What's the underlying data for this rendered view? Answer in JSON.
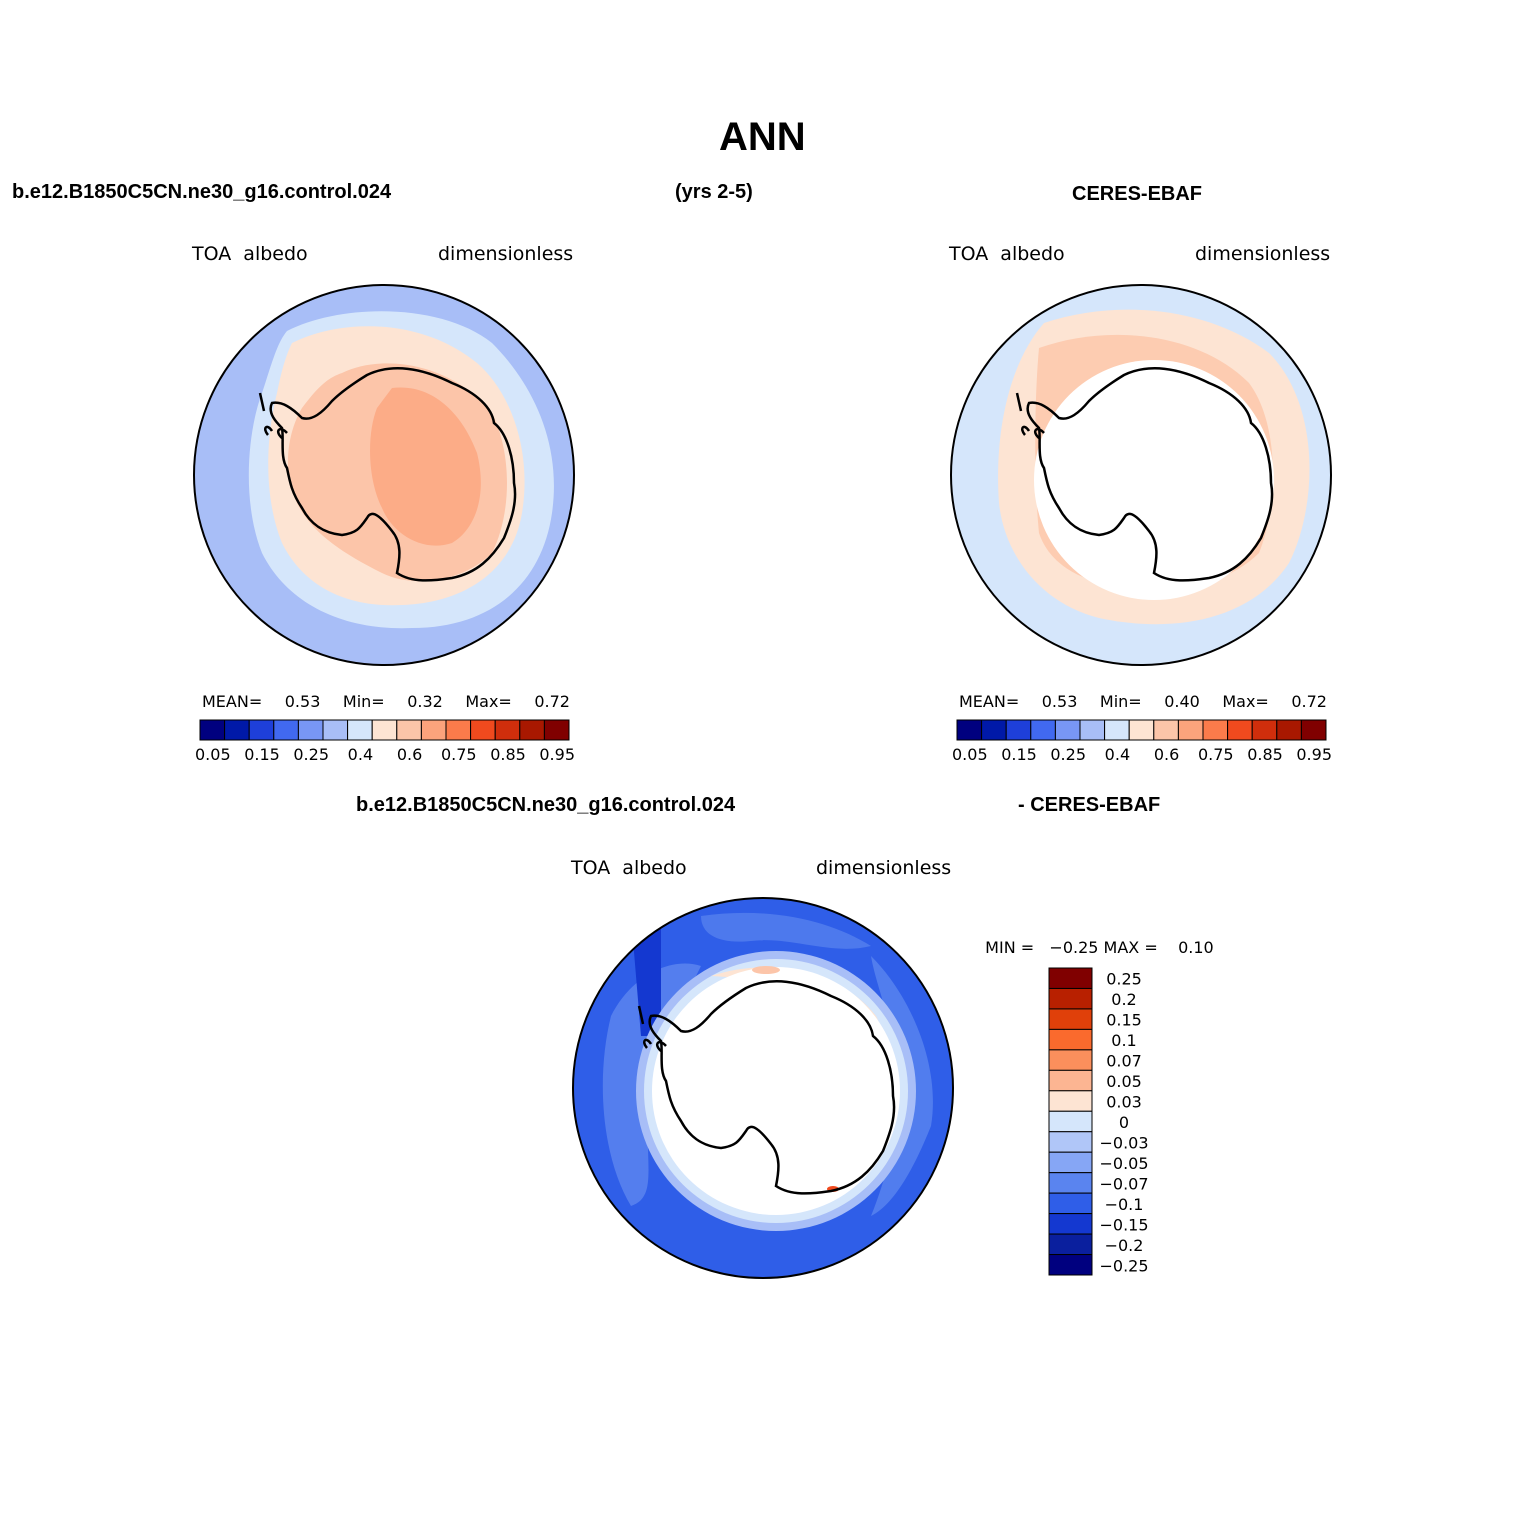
{
  "title": "ANN",
  "top_left_header": "b.e12.B1850C5CN.ne30_g16.control.024",
  "top_middle_header": "(yrs 2-5)",
  "top_right_header": "CERES-EBAF",
  "panels": {
    "model": {
      "variable": "TOA  albedo",
      "units": "dimensionless",
      "stats": {
        "mean_label": "MEAN=",
        "mean": "0.53",
        "min_label": "Min=",
        "min": "0.32",
        "max_label": "Max=",
        "max": "0.72"
      }
    },
    "obs": {
      "variable": "TOA  albedo",
      "units": "dimensionless",
      "stats": {
        "mean_label": "MEAN=",
        "mean": "0.53",
        "min_label": "Min=",
        "min": "0.40",
        "max_label": "Max=",
        "max": "0.72"
      }
    },
    "diff": {
      "header_left": "b.e12.B1850C5CN.ne30_g16.control.024",
      "header_right": "- CERES-EBAF",
      "variable": "TOA  albedo",
      "units": "dimensionless",
      "stats": {
        "min_label": "MIN =",
        "min": "−0.25",
        "max_label": "MAX =",
        "max": "0.10"
      }
    }
  },
  "abs_colorbar": {
    "colors": [
      "#00007f",
      "#0019a8",
      "#1e3fd9",
      "#4169f0",
      "#7896f5",
      "#a8bef7",
      "#d5e6fb",
      "#fde4d3",
      "#fcc5a9",
      "#fca37c",
      "#fb7b4b",
      "#f04a1e",
      "#d02e0c",
      "#a81800",
      "#800000"
    ],
    "tick_labels": [
      "0.05",
      "0.15",
      "0.25",
      "0.4",
      "0.6",
      "0.75",
      "0.85",
      "0.95"
    ]
  },
  "diff_colorbar": {
    "colors": [
      "#800000",
      "#b82000",
      "#e0400a",
      "#fa6a2d",
      "#fb8f5c",
      "#fcb592",
      "#fde4d3",
      "#d5e6fb",
      "#b0c6f8",
      "#86a6f5",
      "#5a84ef",
      "#2f5ee8",
      "#1438d0",
      "#0a1f9e",
      "#00007f"
    ],
    "tick_labels": [
      "0.25",
      "0.2",
      "0.15",
      "0.1",
      "0.07",
      "0.05",
      "0.03",
      "0",
      "−0.03",
      "−0.05",
      "−0.07",
      "−0.1",
      "−0.15",
      "−0.2",
      "−0.25"
    ]
  }
}
